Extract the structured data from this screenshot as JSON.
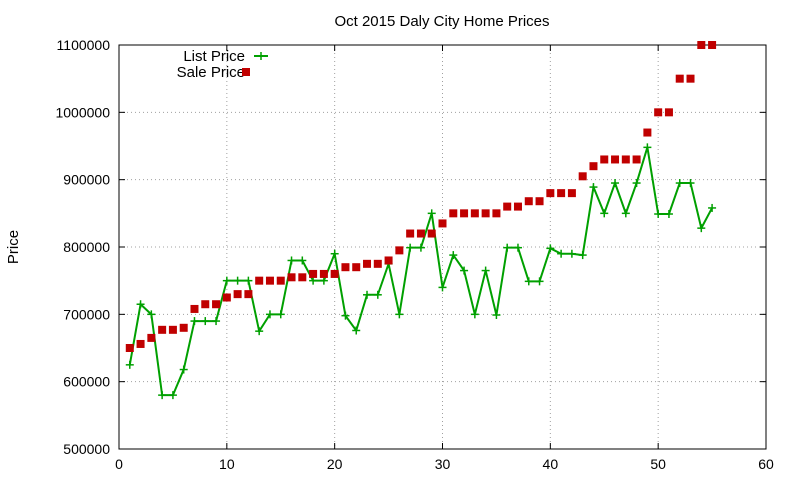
{
  "chart_data": {
    "type": "line",
    "title": "Oct 2015 Daly City Home Prices",
    "xlabel": "",
    "ylabel": "Price",
    "xlim": [
      0,
      60
    ],
    "ylim": [
      500000,
      1100000
    ],
    "xticks": [
      "0",
      "10",
      "20",
      "30",
      "40",
      "50",
      "60"
    ],
    "yticks": [
      "500000",
      "600000",
      "700000",
      "800000",
      "900000",
      "1000000",
      "1100000"
    ],
    "grid": true,
    "legend_position": "top-left",
    "series": [
      {
        "name": "List Price",
        "style": "line+plus-markers",
        "color": "#00a000",
        "x": [
          1,
          2,
          3,
          4,
          5,
          6,
          7,
          8,
          9,
          10,
          11,
          12,
          13,
          14,
          15,
          16,
          17,
          18,
          19,
          20,
          21,
          22,
          23,
          24,
          25,
          26,
          27,
          28,
          29,
          30,
          31,
          32,
          33,
          34,
          35,
          36,
          37,
          38,
          39,
          40,
          41,
          42,
          43,
          44,
          45,
          46,
          47,
          48,
          49,
          50,
          51,
          52,
          53,
          54,
          55
        ],
        "y": [
          625000,
          715000,
          700000,
          580000,
          580000,
          618000,
          690000,
          690000,
          690000,
          750000,
          750000,
          750000,
          675000,
          700000,
          700000,
          780000,
          780000,
          750000,
          750000,
          790000,
          698000,
          676000,
          729000,
          729000,
          775000,
          700000,
          799000,
          799000,
          850000,
          740000,
          788000,
          765000,
          700000,
          765000,
          699000,
          799000,
          799000,
          749000,
          749000,
          798000,
          790000,
          790000,
          788000,
          889000,
          850000,
          895000,
          850000,
          895000,
          948000,
          849000,
          849000,
          895000,
          895000,
          828000,
          858000
        ]
      },
      {
        "name": "Sale Price",
        "style": "square-markers",
        "color": "#c00000",
        "x": [
          1,
          2,
          3,
          4,
          5,
          6,
          7,
          8,
          9,
          10,
          11,
          12,
          13,
          14,
          15,
          16,
          17,
          18,
          19,
          20,
          21,
          22,
          23,
          24,
          25,
          26,
          27,
          28,
          29,
          30,
          31,
          32,
          33,
          34,
          35,
          36,
          37,
          38,
          39,
          40,
          41,
          42,
          43,
          44,
          45,
          46,
          47,
          48,
          49,
          50,
          51,
          52,
          53,
          54,
          55
        ],
        "y": [
          650000,
          656000,
          665000,
          677000,
          677000,
          680000,
          708000,
          715000,
          715000,
          725000,
          730000,
          730000,
          750000,
          750000,
          750000,
          755000,
          755000,
          760000,
          760000,
          760000,
          770000,
          770000,
          775000,
          775000,
          780000,
          795000,
          820000,
          820000,
          820000,
          835000,
          850000,
          850000,
          850000,
          850000,
          850000,
          860000,
          860000,
          868000,
          868000,
          880000,
          880000,
          880000,
          905000,
          920000,
          930000,
          930000,
          930000,
          930000,
          970000,
          1000000,
          1000000,
          1050000,
          1050000,
          1100000,
          1100000
        ]
      }
    ]
  }
}
